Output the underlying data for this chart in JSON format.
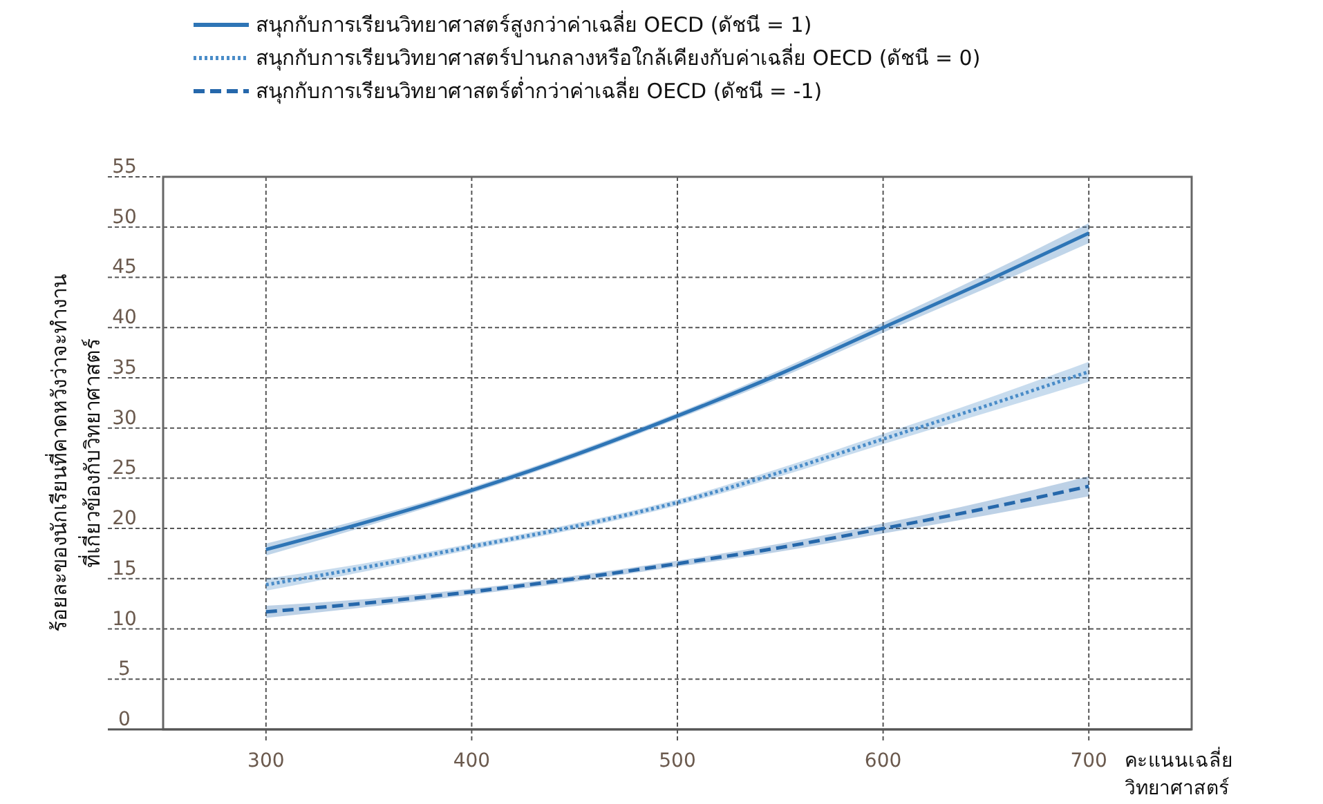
{
  "chart_data": {
    "type": "line",
    "xlabel": "คะแนนเฉลี่ย\nวิทยาศาสตร์",
    "ylabel": "ร้อยละของนักเรียนที่คาดหวังว่าจะทำงาน\nที่เกี่ยวข้องกับวิทยาศาสตร์",
    "x": [
      300,
      350,
      400,
      450,
      500,
      550,
      600,
      650,
      700
    ],
    "series": [
      {
        "name": "สนุกกับการเรียนวิทยาศาสตร์สูงกว่าค่าเฉลี่ย OECD (ดัชนี = 1)",
        "color": "#2e75b6",
        "line_style": "solid",
        "values": [
          17.9,
          20.7,
          23.8,
          27.3,
          31.2,
          35.4,
          40,
          44.6,
          49.4
        ],
        "lower": [
          17.3,
          20.3,
          23.5,
          27,
          30.9,
          35,
          39.5,
          43.9,
          48.4
        ],
        "upper": [
          18.5,
          21.1,
          24.1,
          27.6,
          31.5,
          35.8,
          40.5,
          45.3,
          50.4
        ]
      },
      {
        "name": "สนุกกับการเรียนวิทยาศาสตร์ปานกลางหรือใกล้เคียงกับค่าเฉลี่ย OECD (ดัชนี = 0)",
        "color": "#4a8cc8",
        "line_style": "dotted",
        "values": [
          14.4,
          16.2,
          18.2,
          20.2,
          22.6,
          25.6,
          28.9,
          32.2,
          35.6
        ],
        "lower": [
          13.8,
          15.8,
          17.9,
          19.9,
          22.3,
          25.2,
          28.4,
          31.5,
          34.6
        ],
        "upper": [
          15,
          16.6,
          18.5,
          20.5,
          22.9,
          26,
          29.4,
          32.9,
          36.6
        ]
      },
      {
        "name": "สนุกกับการเรียนวิทยาศาสตร์ต่ำกว่าค่าเฉลี่ย OECD (ดัชนี = -1)",
        "color": "#2668ab",
        "line_style": "dashed",
        "values": [
          11.7,
          12.6,
          13.7,
          15,
          16.5,
          18.1,
          20,
          22,
          24.2
        ],
        "lower": [
          11.1,
          12.2,
          13.4,
          14.7,
          16.2,
          17.7,
          19.5,
          21.3,
          23.2
        ],
        "upper": [
          12.3,
          13,
          14,
          15.3,
          16.8,
          18.5,
          20.5,
          22.7,
          25.2
        ]
      }
    ],
    "xlim": [
      250,
      750
    ],
    "xticks": [
      300,
      400,
      500,
      600,
      700
    ],
    "ylim": [
      0,
      55
    ],
    "yticks": [
      0,
      5,
      10,
      15,
      20,
      25,
      30,
      35,
      40,
      45,
      50,
      55
    ],
    "grid": true,
    "legend": "top left"
  }
}
